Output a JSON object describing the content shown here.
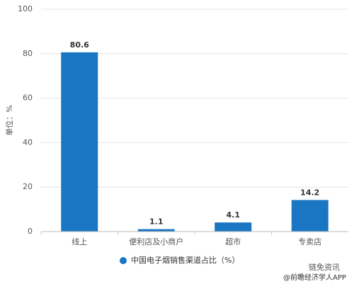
{
  "chart_data": {
    "type": "bar",
    "y_label": "单位：%",
    "categories": [
      "线上",
      "便利店及小商户",
      "超市",
      "专卖店"
    ],
    "series": [
      {
        "name": "中国电子烟销售渠道占比（%）",
        "color": "#1a75c2",
        "values": [
          80.6,
          1.1,
          4.1,
          14.2
        ]
      }
    ],
    "ylim": [
      0,
      100
    ],
    "yticks": [
      0,
      20,
      40,
      60,
      80,
      100
    ],
    "grid": true,
    "legend": "bottom"
  },
  "footer": {
    "badge": "链免资讯",
    "source": "@前瞻经济学人APP"
  }
}
